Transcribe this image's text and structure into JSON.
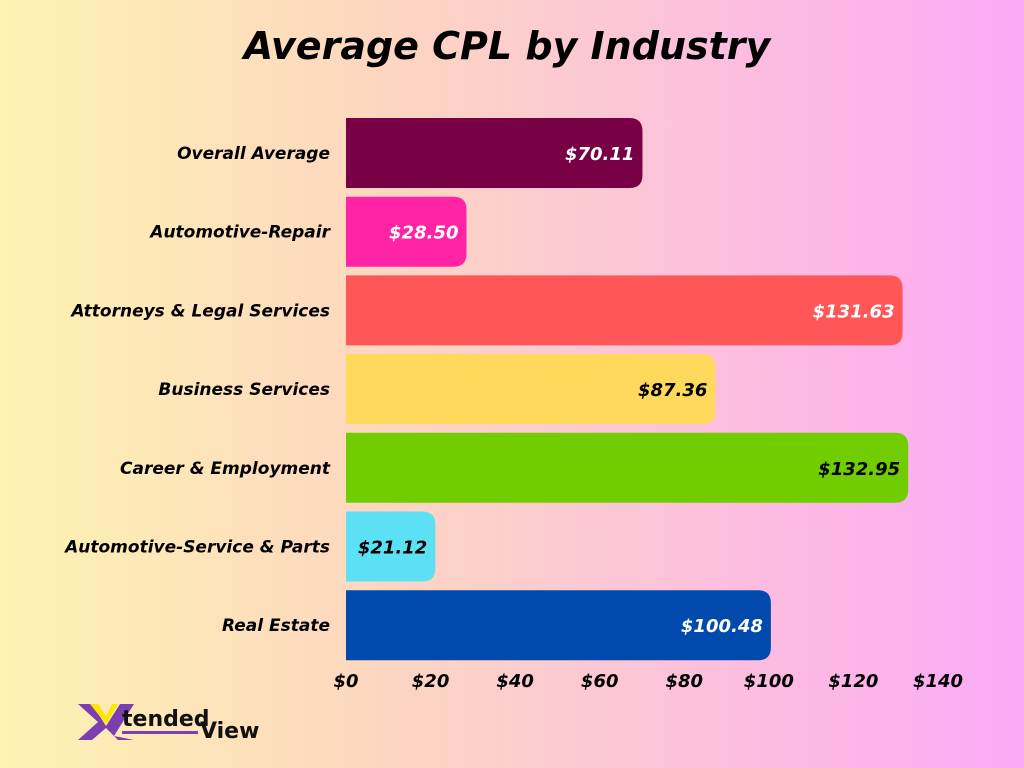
{
  "chart_data": {
    "type": "bar",
    "orientation": "horizontal",
    "title": "Average CPL by Industry",
    "categories": [
      "Overall Average",
      "Automotive-Repair",
      "Attorneys & Legal Services",
      "Business Services",
      "Career & Employment",
      "Automotive-Service & Parts",
      "Real Estate"
    ],
    "values": [
      70.11,
      28.5,
      131.63,
      87.36,
      132.95,
      21.12,
      100.48
    ],
    "data_labels": [
      "$70.11",
      "$28.50",
      "$131.63",
      "$87.36",
      "$132.95",
      "$21.12",
      "$100.48"
    ],
    "colors": [
      "#780045",
      "#ff23a6",
      "#ff5757",
      "#ffd95b",
      "#72cd00",
      "#5ce1f4",
      "#004aad"
    ],
    "label_colors": [
      "#ffffff",
      "#ffffff",
      "#ffffff",
      "#000000",
      "#000000",
      "#000000",
      "#ffffff"
    ],
    "xlim": [
      0,
      140
    ],
    "x_ticks": [
      0,
      20,
      40,
      60,
      80,
      100,
      120,
      140
    ],
    "x_tick_labels": [
      "$0",
      "$20",
      "$40",
      "$60",
      "$80",
      "$100",
      "$120",
      "$140"
    ],
    "grid": false,
    "legend": "none"
  },
  "logo": {
    "text_1": "tended",
    "text_2": "View",
    "letter": "X"
  }
}
